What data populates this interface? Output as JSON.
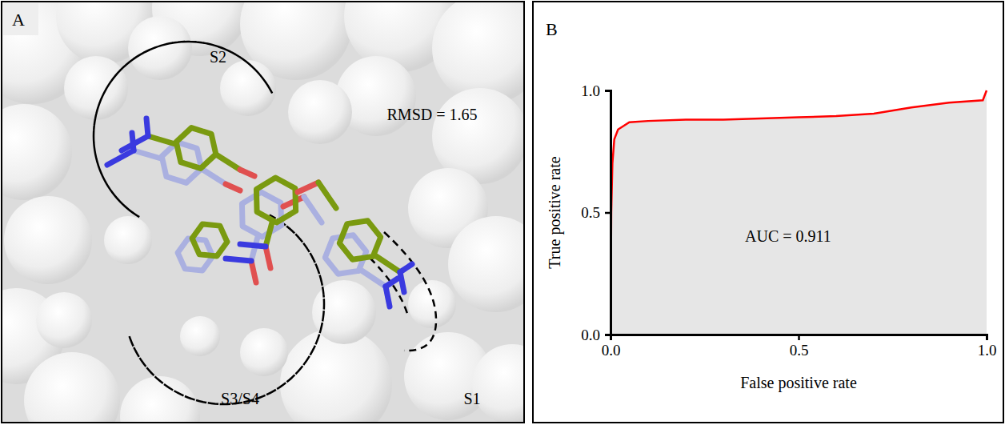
{
  "diagram": {
    "panel_label": "A",
    "pockets": [
      {
        "label": "S2"
      },
      {
        "label": "S3/S4"
      },
      {
        "label": "S1"
      }
    ],
    "annotation": "RMSD = 1.65"
  },
  "chart_data": {
    "type": "area",
    "panel_label": "B",
    "x_label": "False positive rate",
    "y_label": "True positive rate",
    "annotations": [
      "AUC = 0.911"
    ],
    "x": [
      0,
      0.002,
      0.005,
      0.01,
      0.02,
      0.03,
      0.05,
      0.1,
      0.2,
      0.3,
      0.4,
      0.5,
      0.6,
      0.7,
      0.8,
      0.9,
      0.99,
      1.0
    ],
    "values": [
      0,
      0.5,
      0.7,
      0.8,
      0.84,
      0.85,
      0.87,
      0.875,
      0.88,
      0.88,
      0.885,
      0.89,
      0.895,
      0.905,
      0.93,
      0.95,
      0.96,
      1.0
    ],
    "color": "#ff0000",
    "xlim": [
      0,
      1
    ],
    "ylim": [
      0,
      1
    ],
    "xticks": [
      {
        "value": 0,
        "label": "0.0"
      },
      {
        "value": 0.5,
        "label": "0.5"
      },
      {
        "value": 1,
        "label": "1.0"
      }
    ],
    "yticks": [
      {
        "value": 0,
        "label": "0.0"
      },
      {
        "value": 0.5,
        "label": "0.5"
      },
      {
        "value": 1,
        "label": "1.0"
      }
    ],
    "grid": false
  }
}
